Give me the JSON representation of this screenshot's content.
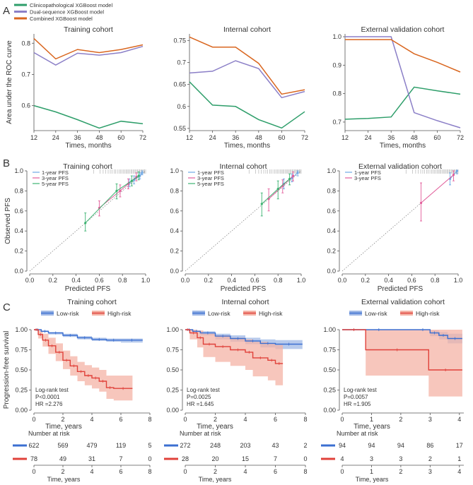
{
  "panel_labels": [
    "A",
    "B",
    "C"
  ],
  "colors": {
    "clinical": "#2e9e6a",
    "dual": "#8b7fc7",
    "combined": "#d9661f",
    "pfs1": "#6ea8e6",
    "pfs3": "#e35d9b",
    "pfs5": "#3cb371",
    "low": "#3b6fd1",
    "high": "#e0413a",
    "lowband": "#9fb8e6",
    "highband": "#f4b3a6"
  },
  "chart_data": [
    {
      "type": "line",
      "panel": "A",
      "title": "Training cohort",
      "xlabel": "Times, months",
      "ylabel": "Area under the ROC curve",
      "x": [
        12,
        24,
        36,
        48,
        60,
        72
      ],
      "xlim": [
        12,
        72
      ],
      "ylim": [
        0.52,
        0.83
      ],
      "yticks": [
        0.6,
        0.7,
        0.8
      ],
      "legend": [
        "Clinicopathological XGBoost model",
        "Dual-sequence XGBoost model",
        "Combined XGBoost model"
      ],
      "series": [
        {
          "name": "Clinicopathological XGBoost model",
          "color": "#2e9e6a",
          "values": [
            0.6,
            0.58,
            0.555,
            0.528,
            0.55,
            0.542
          ]
        },
        {
          "name": "Dual-sequence XGBoost model",
          "color": "#8b7fc7",
          "values": [
            0.77,
            0.73,
            0.768,
            0.762,
            0.77,
            0.79
          ]
        },
        {
          "name": "Combined XGBoost model",
          "color": "#d9661f",
          "values": [
            0.815,
            0.75,
            0.78,
            0.77,
            0.78,
            0.795
          ]
        }
      ]
    },
    {
      "type": "line",
      "panel": "A",
      "title": "Internal cohort",
      "xlabel": "Times, months",
      "ylabel": "",
      "x": [
        12,
        24,
        36,
        48,
        60,
        72
      ],
      "xlim": [
        12,
        72
      ],
      "ylim": [
        0.545,
        0.765
      ],
      "yticks": [
        0.55,
        0.6,
        0.65,
        0.7,
        0.75
      ],
      "series": [
        {
          "name": "Clinicopathological XGBoost model",
          "color": "#2e9e6a",
          "values": [
            0.656,
            0.603,
            0.6,
            0.57,
            0.551,
            0.588
          ]
        },
        {
          "name": "Dual-sequence XGBoost model",
          "color": "#8b7fc7",
          "values": [
            0.676,
            0.68,
            0.704,
            0.686,
            0.62,
            0.634
          ]
        },
        {
          "name": "Combined XGBoost model",
          "color": "#d9661f",
          "values": [
            0.758,
            0.735,
            0.735,
            0.698,
            0.628,
            0.638
          ]
        }
      ]
    },
    {
      "type": "line",
      "panel": "A",
      "title": "External validation cohort",
      "xlabel": "Times, months",
      "ylabel": "",
      "x": [
        12,
        24,
        36,
        48,
        60,
        72
      ],
      "xlim": [
        12,
        72
      ],
      "ylim": [
        0.67,
        1.01
      ],
      "yticks": [
        0.7,
        0.8,
        0.9,
        1.0
      ],
      "series": [
        {
          "name": "Clinicopathological XGBoost model",
          "color": "#2e9e6a",
          "values": [
            0.71,
            0.713,
            0.718,
            0.823,
            0.81,
            0.798
          ]
        },
        {
          "name": "Dual-sequence XGBoost model",
          "color": "#8b7fc7",
          "values": [
            1.0,
            1.0,
            1.0,
            0.733,
            0.705,
            0.68
          ]
        },
        {
          "name": "Combined XGBoost model",
          "color": "#d9661f",
          "values": [
            0.99,
            0.99,
            0.99,
            0.94,
            0.91,
            0.876
          ]
        }
      ]
    },
    {
      "type": "scatter",
      "panel": "B",
      "title": "Training cohort",
      "xlabel": "Predicted PFS",
      "ylabel": "Observed PFS",
      "xlim": [
        0,
        1
      ],
      "ylim": [
        0,
        1
      ],
      "ticks": [
        0.0,
        0.2,
        0.4,
        0.6,
        0.8,
        1.0
      ],
      "legend": [
        "1-year PFS",
        "3-year PFS",
        "5-year PFS"
      ],
      "series": [
        {
          "name": "1-year PFS",
          "color": "#6ea8e6",
          "points": [
            [
              0.86,
              0.88,
              0.84,
              0.92
            ],
            [
              0.9,
              0.91,
              0.87,
              0.95
            ],
            [
              0.95,
              0.95,
              0.92,
              0.98
            ],
            [
              0.97,
              0.98,
              0.96,
              1.0
            ]
          ]
        },
        {
          "name": "3-year PFS",
          "color": "#e35d9b",
          "points": [
            [
              0.6,
              0.63,
              0.55,
              0.7
            ],
            [
              0.78,
              0.8,
              0.74,
              0.86
            ],
            [
              0.85,
              0.87,
              0.82,
              0.92
            ],
            [
              0.92,
              0.94,
              0.9,
              0.98
            ]
          ]
        },
        {
          "name": "5-year PFS",
          "color": "#3cb371",
          "points": [
            [
              0.48,
              0.48,
              0.4,
              0.58
            ],
            [
              0.75,
              0.8,
              0.72,
              0.87
            ],
            [
              0.88,
              0.9,
              0.85,
              0.95
            ],
            [
              0.94,
              0.95,
              0.91,
              0.99
            ]
          ]
        }
      ]
    },
    {
      "type": "scatter",
      "panel": "B",
      "title": "Internal cohort",
      "xlabel": "Predicted PFS",
      "ylabel": "",
      "xlim": [
        0,
        1
      ],
      "ylim": [
        0,
        1
      ],
      "ticks": [
        0.0,
        0.2,
        0.4,
        0.6,
        0.8,
        1.0
      ],
      "legend": [
        "1-year PFS",
        "3-year PFS",
        "5-year PFS"
      ],
      "series": [
        {
          "name": "1-year PFS",
          "color": "#6ea8e6",
          "points": [
            [
              0.85,
              0.87,
              0.82,
              0.92
            ],
            [
              0.92,
              0.93,
              0.89,
              0.97
            ],
            [
              0.97,
              0.98,
              0.95,
              1.0
            ]
          ]
        },
        {
          "name": "3-year PFS",
          "color": "#e35d9b",
          "points": [
            [
              0.72,
              0.72,
              0.6,
              0.82
            ],
            [
              0.84,
              0.85,
              0.78,
              0.91
            ],
            [
              0.93,
              0.95,
              0.9,
              0.99
            ]
          ]
        },
        {
          "name": "5-year PFS",
          "color": "#3cb371",
          "points": [
            [
              0.66,
              0.67,
              0.55,
              0.78
            ],
            [
              0.8,
              0.82,
              0.72,
              0.9
            ],
            [
              0.9,
              0.92,
              0.86,
              0.97
            ]
          ]
        }
      ]
    },
    {
      "type": "scatter",
      "panel": "B",
      "title": "External validation cohort",
      "xlabel": "Predicted PFS",
      "ylabel": "",
      "xlim": [
        0,
        1
      ],
      "ylim": [
        0,
        1
      ],
      "ticks": [
        0.0,
        0.2,
        0.4,
        0.6,
        0.8,
        1.0
      ],
      "legend": [
        "1-year PFS",
        "3-year PFS"
      ],
      "series": [
        {
          "name": "1-year PFS",
          "color": "#6ea8e6",
          "points": [
            [
              0.93,
              0.92,
              0.86,
              0.98
            ],
            [
              0.99,
              1.0,
              0.97,
              1.0
            ]
          ]
        },
        {
          "name": "3-year PFS",
          "color": "#e35d9b",
          "points": [
            [
              0.68,
              0.68,
              0.5,
              0.88
            ],
            [
              0.96,
              0.96,
              0.9,
              1.0
            ]
          ]
        }
      ]
    },
    {
      "type": "line",
      "panel": "C",
      "title": "Training cohort",
      "xlabel": "Time, years",
      "ylabel": "Progression-free survival",
      "xlim": [
        0,
        8
      ],
      "ylim": [
        0,
        1
      ],
      "xticks": [
        0,
        2,
        4,
        6,
        8
      ],
      "yticks": [
        "0.00",
        "0.25",
        "0.50",
        "0.75",
        "1.00"
      ],
      "legend": [
        "Low-risk",
        "High-risk"
      ],
      "annotation": [
        "Log-rank test",
        "P<0.0001",
        "HR =2.276"
      ],
      "series": [
        {
          "name": "Low-risk",
          "color": "#3b6fd1",
          "x": [
            0,
            0.5,
            1,
            2,
            3,
            4,
            5,
            6,
            7.5
          ],
          "values": [
            1.0,
            0.98,
            0.96,
            0.93,
            0.9,
            0.88,
            0.87,
            0.87,
            0.87
          ],
          "lower": [
            1.0,
            0.97,
            0.94,
            0.91,
            0.88,
            0.86,
            0.85,
            0.84,
            0.84
          ],
          "upper": [
            1.0,
            0.99,
            0.97,
            0.95,
            0.92,
            0.9,
            0.89,
            0.89,
            0.89
          ]
        },
        {
          "name": "High-risk",
          "color": "#e0413a",
          "x": [
            0,
            0.3,
            0.6,
            1,
            1.5,
            2,
            2.5,
            3,
            3.5,
            4,
            4.5,
            5,
            5.5,
            6.8
          ],
          "values": [
            1.0,
            0.94,
            0.87,
            0.8,
            0.72,
            0.62,
            0.55,
            0.48,
            0.43,
            0.4,
            0.36,
            0.28,
            0.27,
            0.27
          ],
          "lower": [
            1.0,
            0.89,
            0.79,
            0.7,
            0.61,
            0.51,
            0.43,
            0.36,
            0.31,
            0.27,
            0.23,
            0.14,
            0.12,
            0.12
          ],
          "upper": [
            1.0,
            0.99,
            0.95,
            0.9,
            0.83,
            0.74,
            0.67,
            0.6,
            0.56,
            0.53,
            0.5,
            0.43,
            0.43,
            0.43
          ]
        }
      ],
      "risk_table": {
        "label": "Number at risk",
        "times": [
          0,
          2,
          4,
          6,
          8
        ],
        "low": [
          "622",
          "569",
          "479",
          "119",
          "5"
        ],
        "high": [
          "78",
          "49",
          "31",
          "7",
          "0"
        ]
      }
    },
    {
      "type": "line",
      "panel": "C",
      "title": "Internal cohort",
      "xlabel": "Time, years",
      "ylabel": "",
      "xlim": [
        0,
        8
      ],
      "ylim": [
        0,
        1
      ],
      "xticks": [
        0,
        2,
        4,
        6,
        8
      ],
      "yticks": [
        "0.00",
        "0.25",
        "0.50",
        "0.75",
        "1.00"
      ],
      "legend": [
        "Low-risk",
        "High-risk"
      ],
      "annotation": [
        "Log-rank test",
        "P=0.0025",
        "HR =1.645"
      ],
      "series": [
        {
          "name": "Low-risk",
          "color": "#3b6fd1",
          "x": [
            0,
            0.5,
            1,
            2,
            3,
            4,
            5,
            6,
            7.8
          ],
          "values": [
            1.0,
            0.98,
            0.96,
            0.92,
            0.89,
            0.86,
            0.83,
            0.82,
            0.82
          ],
          "lower": [
            1.0,
            0.97,
            0.93,
            0.88,
            0.85,
            0.82,
            0.78,
            0.76,
            0.76
          ],
          "upper": [
            1.0,
            0.99,
            0.98,
            0.95,
            0.93,
            0.9,
            0.88,
            0.87,
            0.87
          ]
        },
        {
          "name": "High-risk",
          "color": "#e0413a",
          "x": [
            0,
            0.3,
            0.8,
            1.2,
            2,
            3,
            4,
            4.5,
            5.5,
            6,
            6.5
          ],
          "values": [
            1.0,
            0.96,
            0.9,
            0.82,
            0.79,
            0.75,
            0.72,
            0.65,
            0.62,
            0.58,
            0.58
          ],
          "lower": [
            1.0,
            0.88,
            0.78,
            0.66,
            0.6,
            0.55,
            0.5,
            0.42,
            0.37,
            0.31,
            0.31
          ],
          "upper": [
            1.0,
            1.0,
            0.99,
            0.95,
            0.93,
            0.9,
            0.88,
            0.85,
            0.83,
            0.81,
            0.81
          ]
        }
      ],
      "risk_table": {
        "label": "Number at risk",
        "times": [
          0,
          2,
          4,
          6,
          8
        ],
        "low": [
          "272",
          "248",
          "203",
          "43",
          "2"
        ],
        "high": [
          "28",
          "20",
          "15",
          "7",
          "0"
        ]
      }
    },
    {
      "type": "line",
      "panel": "C",
      "title": "External validation cohort",
      "xlabel": "Time, years",
      "ylabel": "",
      "xlim": [
        0,
        4.15
      ],
      "ylim": [
        0,
        1
      ],
      "xticks": [
        0,
        1,
        2,
        3,
        4
      ],
      "yticks": [
        "0.00",
        "0.25",
        "0.50",
        "0.75",
        "1.00"
      ],
      "legend": [
        "Low-risk",
        "High-risk"
      ],
      "annotation": [
        "Log-rank test",
        "P=0.0057",
        "HR =1.905"
      ],
      "series": [
        {
          "name": "Low-risk",
          "color": "#3b6fd1",
          "x": [
            0,
            2.5,
            3.0,
            3.3,
            3.6,
            4.1
          ],
          "values": [
            1.0,
            1.0,
            0.96,
            0.93,
            0.89,
            0.89
          ],
          "lower": [
            1.0,
            1.0,
            0.92,
            0.88,
            0.83,
            0.83
          ],
          "upper": [
            1.0,
            1.0,
            0.99,
            0.97,
            0.95,
            0.95
          ]
        },
        {
          "name": "High-risk",
          "color": "#e0413a",
          "x": [
            0,
            0.8,
            2.95,
            4.1
          ],
          "values": [
            1.0,
            0.75,
            0.5,
            0.5
          ],
          "lower": [
            1.0,
            0.43,
            0.17,
            0.17
          ],
          "upper": [
            1.0,
            1.0,
            1.0,
            1.0
          ]
        }
      ],
      "risk_table": {
        "label": "Number at risk",
        "times": [
          0,
          1,
          2,
          3,
          4
        ],
        "low": [
          "94",
          "94",
          "94",
          "86",
          "17"
        ],
        "high": [
          "4",
          "3",
          "3",
          "2",
          "1"
        ]
      }
    }
  ]
}
